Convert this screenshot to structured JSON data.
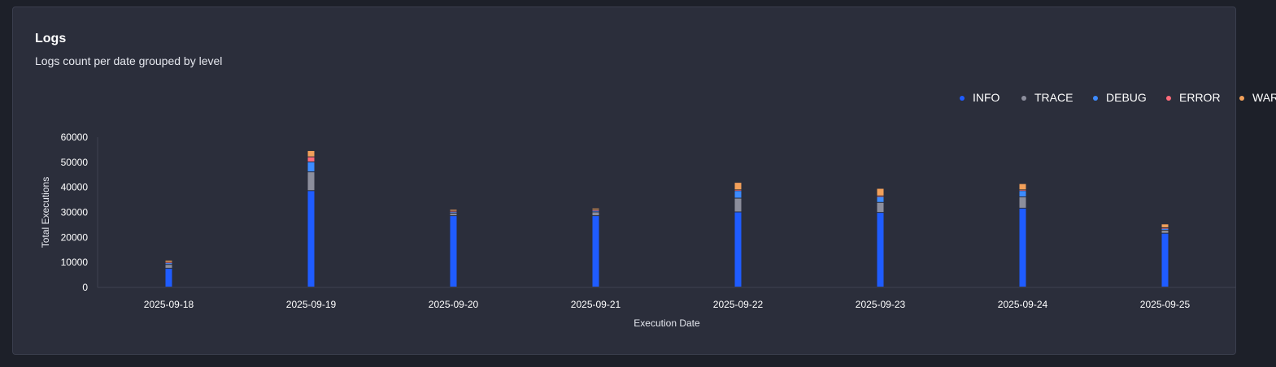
{
  "header": {
    "title": "Logs",
    "subtitle": "Logs count per date grouped by level"
  },
  "chart_data": {
    "type": "bar",
    "stacked": true,
    "xlabel": "Execution Date",
    "ylabel": "Total Executions",
    "ylim": [
      0,
      60000
    ],
    "yticks": [
      0,
      10000,
      20000,
      30000,
      40000,
      50000,
      60000
    ],
    "categories": [
      "2025-09-18",
      "2025-09-19",
      "2025-09-20",
      "2025-09-21",
      "2025-09-22",
      "2025-09-23",
      "2025-09-24",
      "2025-09-25"
    ],
    "legend_position": "top-right",
    "series": [
      {
        "name": "INFO",
        "color": "#1f5cff",
        "values": [
          7500,
          38500,
          28500,
          28500,
          30000,
          29800,
          31500,
          21500
        ]
      },
      {
        "name": "TRACE",
        "color": "#8c8e9c",
        "values": [
          1500,
          7500,
          1000,
          1500,
          5500,
          4000,
          4500,
          1200
        ]
      },
      {
        "name": "DEBUG",
        "color": "#3d8bff",
        "values": [
          700,
          4000,
          600,
          600,
          3000,
          2300,
          2500,
          700
        ]
      },
      {
        "name": "ERROR",
        "color": "#ff6b7a",
        "values": [
          200,
          2000,
          200,
          200,
          300,
          300,
          300,
          300
        ]
      },
      {
        "name": "WARN",
        "color": "#f2a05a",
        "values": [
          800,
          2500,
          700,
          700,
          3000,
          3000,
          2500,
          1500
        ]
      }
    ]
  }
}
